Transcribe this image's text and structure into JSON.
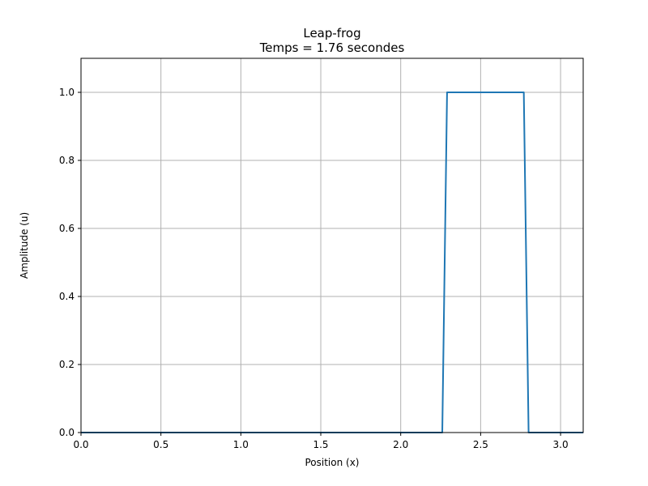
{
  "chart_data": {
    "type": "line",
    "title": "Leap-frog",
    "subtitle": "Temps = 1.76 secondes",
    "xlabel": "Position (x)",
    "ylabel": "Amplitude (u)",
    "xlim": [
      0,
      3.14159
    ],
    "ylim": [
      0,
      1.1
    ],
    "xticks": [
      0.0,
      0.5,
      1.0,
      1.5,
      2.0,
      2.5,
      3.0
    ],
    "xtick_labels": [
      "0.0",
      "0.5",
      "1.0",
      "1.5",
      "2.0",
      "2.5",
      "3.0"
    ],
    "yticks": [
      0.0,
      0.2,
      0.4,
      0.6,
      0.8,
      1.0
    ],
    "ytick_labels": [
      "0.0",
      "0.2",
      "0.4",
      "0.6",
      "0.8",
      "1.0"
    ],
    "grid": true,
    "line_color": "#1f77b4",
    "grid_color": "#b0b0b0",
    "series": [
      {
        "x": [
          0.0,
          2.26,
          2.29,
          2.77,
          2.8,
          3.14159
        ],
        "y": [
          0.0,
          0.0,
          1.0,
          1.0,
          0.0,
          0.0
        ]
      }
    ]
  }
}
